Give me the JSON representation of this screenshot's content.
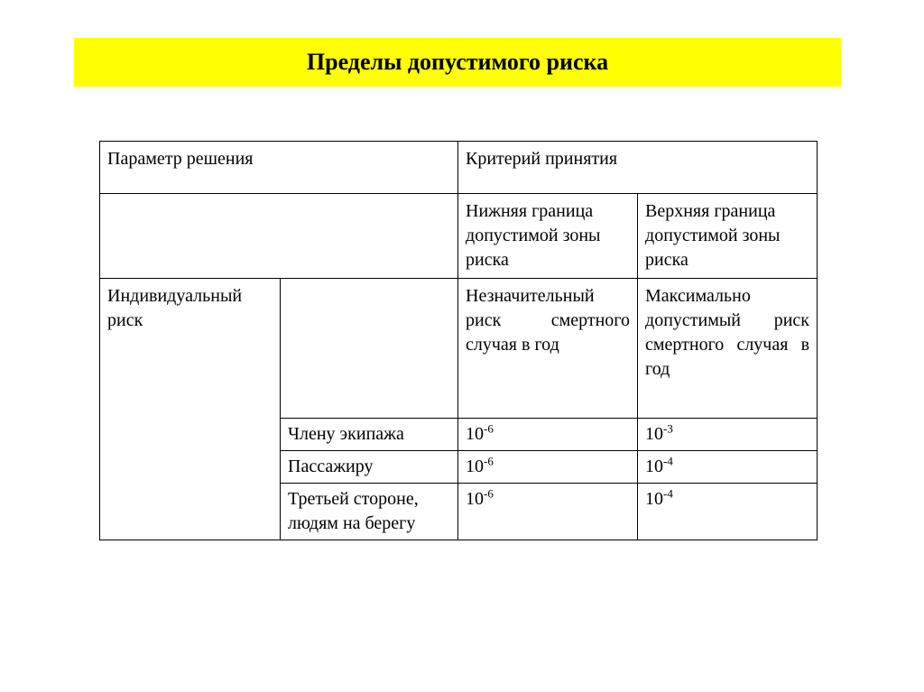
{
  "title": "Пределы допустимого риска",
  "table": {
    "header": {
      "col1": "Параметр решения",
      "col2_span": "Критерий принятия"
    },
    "subheader": {
      "col3": "Нижняя граница допустимой зоны риска",
      "col4": "Верхняя граница допустимой зоны риска"
    },
    "individual_risk": {
      "label": "Индивидуальный риск",
      "col3": "Незначительный риск смертного случая в год",
      "col4": "Максимально допустимый риск смертного случая в год"
    },
    "rows": [
      {
        "label": "Члену экипажа",
        "lower_base": "10",
        "lower_exp": "-6",
        "upper_base": "10",
        "upper_exp": "-3"
      },
      {
        "label": "Пассажиру",
        "lower_base": "10",
        "lower_exp": "-6",
        "upper_base": "10",
        "upper_exp": "-4"
      },
      {
        "label": "Третьей стороне, людям на берегу",
        "lower_base": "10",
        "lower_exp": "-6",
        "upper_base": "10",
        "upper_exp": "-4"
      }
    ]
  },
  "colors": {
    "title_bg": "#ffff00",
    "text": "#000000",
    "border": "#000000",
    "background": "#ffffff"
  },
  "fonts": {
    "title_size": 26,
    "body_size": 20,
    "sup_size": 13,
    "family": "Times New Roman"
  }
}
